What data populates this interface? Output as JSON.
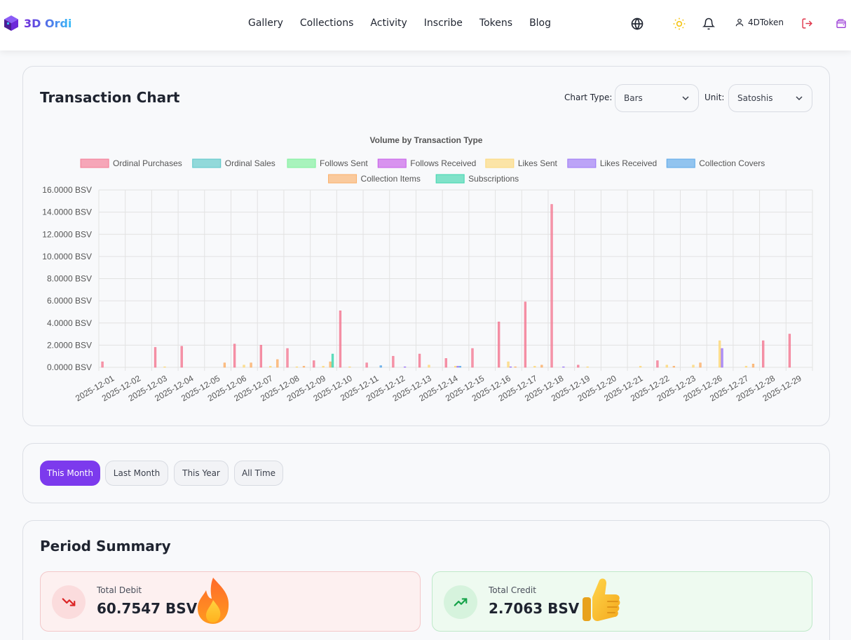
{
  "brand": {
    "name": "3D Ordi",
    "logo_icon": "cube-logo-icon"
  },
  "nav": {
    "links": [
      "Gallery",
      "Collections",
      "Activity",
      "Inscribe",
      "Tokens",
      "Blog"
    ]
  },
  "header_icons": {
    "language": "globe-icon",
    "theme": "sun-icon",
    "notifications": "bell-icon",
    "logout": "logout-icon",
    "wallet": "wallet-icon"
  },
  "user": {
    "name": "4DToken"
  },
  "chart_section": {
    "title": "Transaction Chart",
    "chart_type_label": "Chart Type:",
    "chart_type_value": "Bars",
    "unit_label": "Unit:",
    "unit_value": "Satoshis"
  },
  "chart_data": {
    "type": "bar",
    "title": "Volume by Transaction Type",
    "xlabel": "",
    "ylabel": "",
    "ylim": [
      0,
      16
    ],
    "y_ticks": [
      "16.0000 BSV",
      "14.0000 BSV",
      "12.0000 BSV",
      "10.0000 BSV",
      "8.0000 BSV",
      "6.0000 BSV",
      "4.0000 BSV",
      "2.0000 BSV",
      "0.0000 BSV"
    ],
    "grid": true,
    "legend_position": "top-center",
    "categories": [
      "2025-12-01",
      "2025-12-02",
      "2025-12-03",
      "2025-12-04",
      "2025-12-05",
      "2025-12-06",
      "2025-12-07",
      "2025-12-08",
      "2025-12-09",
      "2025-12-10",
      "2025-12-11",
      "2025-12-12",
      "2025-12-13",
      "2025-12-14",
      "2025-12-15",
      "2025-12-16",
      "2025-12-17",
      "2025-12-18",
      "2025-12-19",
      "2025-12-20",
      "2025-12-21",
      "2025-12-22",
      "2025-12-23",
      "2025-12-26",
      "2025-12-27",
      "2025-12-28",
      "2025-12-29"
    ],
    "series": [
      {
        "name": "Ordinal Purchases",
        "color": "#f47a94",
        "values": [
          0.5,
          0,
          1.8,
          1.9,
          0,
          2.1,
          2.0,
          1.7,
          0.6,
          5.1,
          0.4,
          1.0,
          1.2,
          0.8,
          1.7,
          4.1,
          5.9,
          14.7,
          0.2,
          0,
          0,
          0.6,
          0,
          0,
          0,
          2.4,
          3.0
        ]
      },
      {
        "name": "Ordinal Sales",
        "color": "#5ac8c8",
        "values": [
          0,
          0,
          0,
          0,
          0,
          0,
          0,
          0,
          0,
          0,
          0,
          0,
          0,
          0,
          0,
          0,
          0,
          0,
          0,
          0,
          0,
          0,
          0,
          0,
          0,
          0,
          0
        ]
      },
      {
        "name": "Follows Sent",
        "color": "#7cf09a",
        "values": [
          0,
          0,
          0,
          0,
          0,
          0,
          0,
          0,
          0,
          0,
          0,
          0,
          0,
          0,
          0,
          0,
          0,
          0,
          0,
          0,
          0,
          0,
          0,
          0,
          0,
          0,
          0
        ]
      },
      {
        "name": "Follows Received",
        "color": "#c65ce8",
        "values": [
          0,
          0,
          0,
          0,
          0,
          0,
          0,
          0,
          0,
          0,
          0,
          0,
          0,
          0,
          0,
          0,
          0,
          0,
          0,
          0,
          0,
          0,
          0,
          0,
          0,
          0,
          0
        ]
      },
      {
        "name": "Likes Sent",
        "color": "#fcd87a",
        "values": [
          0,
          0,
          0.05,
          0,
          0,
          0.2,
          0.1,
          0.05,
          0.1,
          0.05,
          0,
          0,
          0.2,
          0.1,
          0,
          0.5,
          0.1,
          0,
          0.05,
          0,
          0.1,
          0.2,
          0.2,
          2.4,
          0.1,
          0,
          0
        ]
      },
      {
        "name": "Likes Received",
        "color": "#9b76f5",
        "values": [
          0,
          0,
          0,
          0,
          0,
          0,
          0,
          0,
          0,
          0,
          0,
          0.05,
          0,
          0.1,
          0,
          0.05,
          0,
          0.05,
          0,
          0,
          0,
          0,
          0,
          1.7,
          0,
          0,
          0
        ]
      },
      {
        "name": "Collection Covers",
        "color": "#5aa8e8",
        "values": [
          0,
          0,
          0,
          0,
          0,
          0,
          0,
          0,
          0,
          0,
          0.15,
          0,
          0,
          0.1,
          0,
          0,
          0,
          0,
          0,
          0,
          0,
          0,
          0,
          0,
          0,
          0,
          0
        ]
      },
      {
        "name": "Collection Items",
        "color": "#fbb06a",
        "values": [
          0,
          0,
          0,
          0,
          0.4,
          0.4,
          0.7,
          0.1,
          0.5,
          0,
          0,
          0,
          0,
          0,
          0,
          0.05,
          0.2,
          0,
          0,
          0,
          0,
          0.1,
          0.4,
          0,
          0.3,
          0,
          0
        ]
      },
      {
        "name": "Subscriptions",
        "color": "#3fd6ae",
        "values": [
          0,
          0,
          0,
          0,
          0,
          0,
          0,
          0,
          1.2,
          0,
          0,
          0,
          0,
          0,
          0,
          0,
          0,
          0,
          0,
          0,
          0,
          0,
          0,
          0,
          0,
          0,
          0
        ]
      }
    ]
  },
  "period_filters": {
    "buttons": [
      "This Month",
      "Last Month",
      "This Year",
      "All Time"
    ],
    "active": "This Month"
  },
  "summary": {
    "title": "Period Summary",
    "debit": {
      "label": "Total Debit",
      "value": "60.7547 BSV",
      "icon": "trending-down-icon",
      "emoji": "fire-emoji-icon",
      "color": "#dc2626"
    },
    "credit": {
      "label": "Total Credit",
      "value": "2.7063 BSV",
      "icon": "trending-up-icon",
      "emoji": "thumbs-up-emoji-icon",
      "color": "#16a34a"
    }
  }
}
